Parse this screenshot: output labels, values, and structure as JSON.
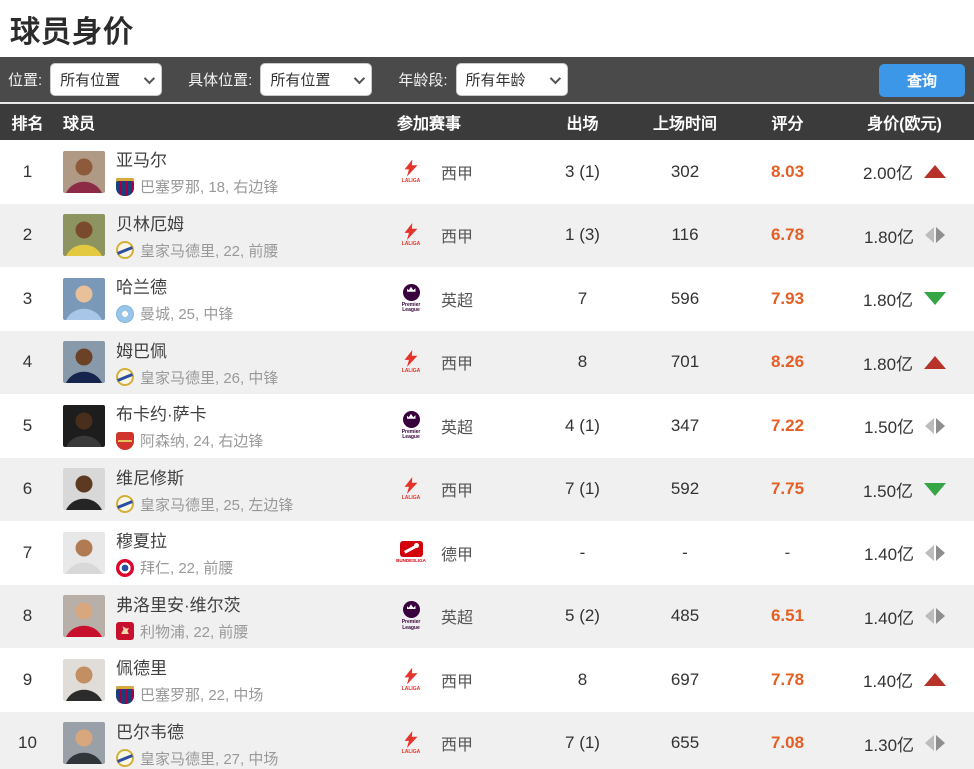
{
  "page": {
    "title": "球员身价"
  },
  "filters": {
    "fields": [
      {
        "label": "位置:",
        "value": "所有位置"
      },
      {
        "label": "具体位置:",
        "value": "所有位置"
      },
      {
        "label": "年龄段:",
        "value": "所有年龄"
      }
    ],
    "search_label": "查询"
  },
  "table": {
    "headers": {
      "rank": "排名",
      "player": "球员",
      "league": "参加赛事",
      "appearances": "出场",
      "minutes": "上场时间",
      "rating": "评分",
      "value": "身价(欧元)"
    },
    "rows": [
      {
        "rank": "1",
        "name": "亚马尔",
        "meta": "巴塞罗那, 18, 右边锋",
        "club_key": "barcelona",
        "league": "西甲",
        "league_key": "laliga",
        "apps": "3 (1)",
        "minutes": "302",
        "rating": "8.03",
        "value": "2.00亿",
        "trend": "up",
        "photo": {
          "bg": "#b09a86",
          "skin": "#8d5a3b",
          "jersey": "#8d2b46"
        }
      },
      {
        "rank": "2",
        "name": "贝林厄姆",
        "meta": "皇家马德里, 22, 前腰",
        "club_key": "realmadrid",
        "league": "西甲",
        "league_key": "laliga",
        "apps": "1 (3)",
        "minutes": "116",
        "rating": "6.78",
        "value": "1.80亿",
        "trend": "flat",
        "photo": {
          "bg": "#8e9460",
          "skin": "#7a4a2e",
          "jersey": "#e3c93f"
        }
      },
      {
        "rank": "3",
        "name": "哈兰德",
        "meta": "曼城, 25, 中锋",
        "club_key": "mancity",
        "league": "英超",
        "league_key": "premier",
        "apps": "7",
        "minutes": "596",
        "rating": "7.93",
        "value": "1.80亿",
        "trend": "down",
        "photo": {
          "bg": "#7a99b8",
          "skin": "#e8c09a",
          "jersey": "#a7c6e8"
        }
      },
      {
        "rank": "4",
        "name": "姆巴佩",
        "meta": "皇家马德里, 26, 中锋",
        "club_key": "realmadrid",
        "league": "西甲",
        "league_key": "laliga",
        "apps": "8",
        "minutes": "701",
        "rating": "8.26",
        "value": "1.80亿",
        "trend": "up",
        "photo": {
          "bg": "#8899aa",
          "skin": "#6b4226",
          "jersey": "#16254d"
        }
      },
      {
        "rank": "5",
        "name": "布卡约·萨卡",
        "meta": "阿森纳, 24, 右边锋",
        "club_key": "arsenal",
        "league": "英超",
        "league_key": "premier",
        "apps": "4 (1)",
        "minutes": "347",
        "rating": "7.22",
        "value": "1.50亿",
        "trend": "flat",
        "photo": {
          "bg": "#1d1d1d",
          "skin": "#4a2e1c",
          "jersey": "#3a3a3a"
        }
      },
      {
        "rank": "6",
        "name": "维尼修斯",
        "meta": "皇家马德里, 25, 左边锋",
        "club_key": "realmadrid",
        "league": "西甲",
        "league_key": "laliga",
        "apps": "7 (1)",
        "minutes": "592",
        "rating": "7.75",
        "value": "1.50亿",
        "trend": "down",
        "photo": {
          "bg": "#d8d8d8",
          "skin": "#5c3a22",
          "jersey": "#252525"
        }
      },
      {
        "rank": "7",
        "name": "穆夏拉",
        "meta": "拜仁, 22, 前腰",
        "club_key": "bayern",
        "league": "德甲",
        "league_key": "bundesliga",
        "apps": "-",
        "minutes": "-",
        "rating": "-",
        "value": "1.40亿",
        "trend": "flat",
        "photo": {
          "bg": "#e8e8e8",
          "skin": "#b07a52",
          "jersey": "#d8d8d8"
        }
      },
      {
        "rank": "8",
        "name": "弗洛里安·维尔茨",
        "meta": "利物浦, 22, 前腰",
        "club_key": "liverpool",
        "league": "英超",
        "league_key": "premier",
        "apps": "5 (2)",
        "minutes": "485",
        "rating": "6.51",
        "value": "1.40亿",
        "trend": "flat",
        "photo": {
          "bg": "#b8b0a8",
          "skin": "#d9a77e",
          "jersey": "#c8102e"
        }
      },
      {
        "rank": "9",
        "name": "佩德里",
        "meta": "巴塞罗那, 22, 中场",
        "club_key": "barcelona",
        "league": "西甲",
        "league_key": "laliga",
        "apps": "8",
        "minutes": "697",
        "rating": "7.78",
        "value": "1.40亿",
        "trend": "up",
        "photo": {
          "bg": "#e0ddd8",
          "skin": "#c28e62",
          "jersey": "#2b2b2b"
        }
      },
      {
        "rank": "10",
        "name": "巴尔韦德",
        "meta": "皇家马德里, 27, 中场",
        "club_key": "realmadrid",
        "league": "西甲",
        "league_key": "laliga",
        "apps": "7 (1)",
        "minutes": "655",
        "rating": "7.08",
        "value": "1.30亿",
        "trend": "flat",
        "photo": {
          "bg": "#9aa0a8",
          "skin": "#d9a77e",
          "jersey": "#30353a"
        }
      }
    ]
  },
  "leagues": {
    "laliga": {
      "label_small": "LALIGA",
      "color": "#e5342c"
    },
    "premier": {
      "label_small": "Premier League",
      "color": "#38003c"
    },
    "bundesliga": {
      "label_small": "BUNDESLIGA",
      "color": "#d3010c"
    }
  },
  "colors": {
    "search_button": "#3c97e8",
    "rating": "#e55f24",
    "trend_up": "#b73228",
    "trend_down": "#35a546",
    "trend_flat": "#9a9a9a",
    "header_bg": "#3b3b3b",
    "filter_bg": "#4a4a4a",
    "row_alt_bg": "#f0f0f0"
  }
}
